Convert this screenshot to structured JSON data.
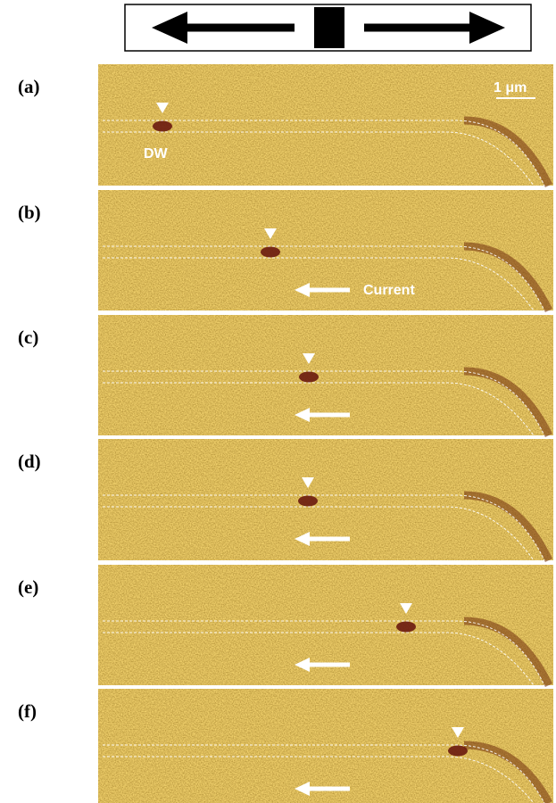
{
  "scale_bar": "1 μm",
  "panels": [
    {
      "label": "(a)",
      "annotation": "DW"
    },
    {
      "label": "(b)",
      "annotation": "Current"
    },
    {
      "label": "(c)"
    },
    {
      "label": "(d)"
    },
    {
      "label": "(e)"
    },
    {
      "label": "(f)"
    }
  ]
}
